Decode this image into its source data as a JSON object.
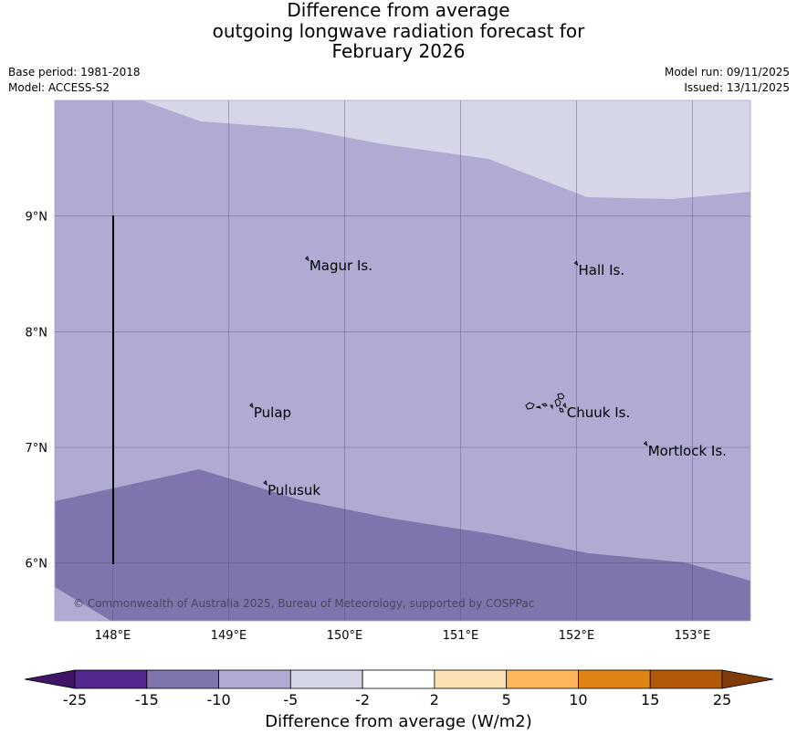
{
  "title_lines": [
    "Difference from average",
    "outgoing longwave radiation forecast for",
    "February 2026"
  ],
  "meta": {
    "base_period": "Base period: 1981-2018",
    "model": "Model: ACCESS-S2",
    "model_run": "Model run: 09/11/2025",
    "issued": "Issued: 13/11/2025"
  },
  "map": {
    "lon_labels": [
      "148°E",
      "149°E",
      "150°E",
      "151°E",
      "152°E",
      "153°E"
    ],
    "lat_labels": [
      "9°N",
      "8°N",
      "7°N",
      "6°N"
    ],
    "lon_range": [
      147.5,
      153.5
    ],
    "lat_range": [
      5.5,
      10.0
    ],
    "places": [
      {
        "name": "Magur Is.",
        "lon": 149.68,
        "lat": 8.57
      },
      {
        "name": "Hall Is.",
        "lon": 152.0,
        "lat": 8.53
      },
      {
        "name": "Pulap",
        "lon": 149.2,
        "lat": 7.3
      },
      {
        "name": "Chuuk Is.",
        "lon": 151.9,
        "lat": 7.3
      },
      {
        "name": "Mortlock Is.",
        "lon": 152.6,
        "lat": 6.97
      },
      {
        "name": "Pulusuk",
        "lon": 149.32,
        "lat": 6.63
      }
    ],
    "copyright": "© Commonwealth of Australia 2025, Bureau of Meteorology, supported by COSPPac",
    "colors": {
      "band_-5_-2": "#d6d6e9",
      "band_-10_-5": "#b0abd3",
      "band_-15_-10": "#7f74ac",
      "grid": "#5a527a"
    }
  },
  "colorbar": {
    "title": "Difference from average (W/m2)",
    "ticks": [
      "-25",
      "-15",
      "-10",
      "-5",
      "-2",
      "2",
      "5",
      "10",
      "15",
      "25"
    ],
    "colors": [
      "#3f1568",
      "#54278f",
      "#7f74ac",
      "#b0abd3",
      "#d6d6e9",
      "#ffffff",
      "#fde0b3",
      "#fdb65c",
      "#e08214",
      "#b35806",
      "#7f3b08"
    ]
  }
}
